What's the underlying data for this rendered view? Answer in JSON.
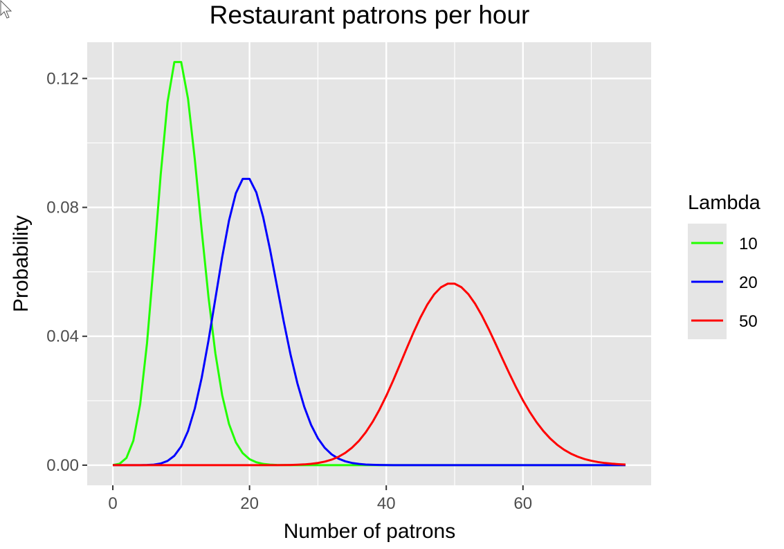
{
  "chart_data": {
    "type": "line",
    "title": "Restaurant patrons per hour",
    "xlabel": "Number of patrons",
    "ylabel": "Probability",
    "xlim": [
      -3.75,
      78.75
    ],
    "ylim": [
      -0.00625,
      0.13125
    ],
    "xticks": [
      0,
      20,
      40,
      60
    ],
    "xtick_labels": [
      "0",
      "20",
      "40",
      "60"
    ],
    "yticks": [
      0,
      0.04,
      0.08,
      0.12
    ],
    "ytick_labels": [
      "0.00",
      "0.04",
      "0.08",
      "0.12"
    ],
    "grid": true,
    "legend": {
      "title": "Lambda",
      "position": "right"
    },
    "x_range": [
      0,
      75
    ],
    "series": [
      {
        "name": "10",
        "lambda": 10,
        "color": "#22ff00"
      },
      {
        "name": "20",
        "lambda": 20,
        "color": "#0000ff"
      },
      {
        "name": "50",
        "lambda": 50,
        "color": "#ff0000"
      }
    ],
    "panel_background": "#e5e5e5",
    "grid_color": "#ffffff"
  }
}
